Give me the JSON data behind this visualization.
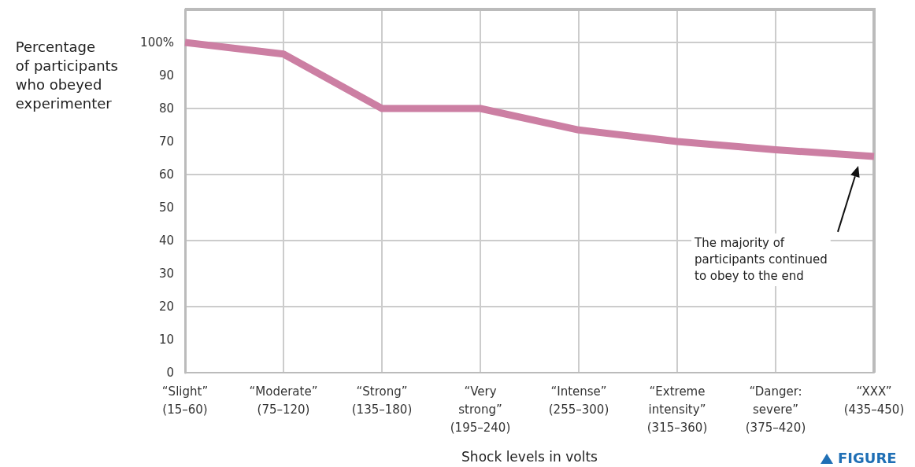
{
  "chart_data": {
    "type": "line",
    "xlabel": "Shock levels in volts",
    "ylabel": "Percentage\nof participants\nwho obeyed\nexperimenter",
    "categories": [
      "“Slight”\n(15–60)",
      "“Moderate”\n(75–120)",
      "“Strong”\n(135–180)",
      "“Very\nstrong”\n(195–240)",
      "“Intense”\n(255–300)",
      "“Extreme\nintensity”\n(315–360)",
      "“Danger:\nsevere”\n(375–420)",
      "“XXX”\n(435–450)"
    ],
    "series": [
      {
        "color": "#cc7fa3",
        "values": [
          100,
          96.5,
          80,
          80,
          73.5,
          70,
          67.5,
          65.5
        ]
      }
    ],
    "ylim": [
      0,
      110
    ],
    "yticks": [
      0,
      10,
      20,
      30,
      40,
      50,
      60,
      70,
      80,
      90,
      {
        "value": 100,
        "label": "100%"
      }
    ],
    "grid": true,
    "marker": "none",
    "line_style": "solid",
    "annotations": [
      "The majority of\nparticipants continued\nto obey to the end",
      "FIGURE"
    ]
  }
}
